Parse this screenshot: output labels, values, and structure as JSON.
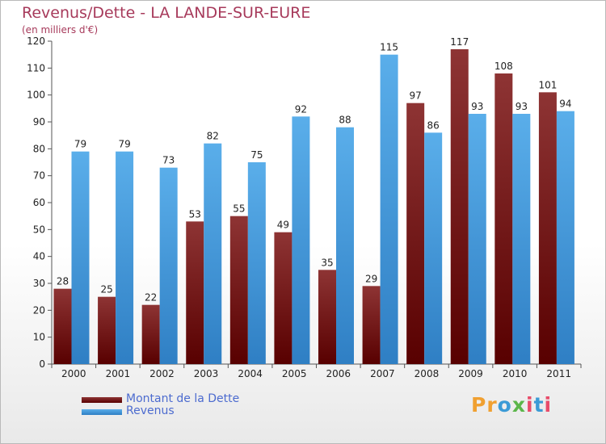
{
  "chart_data": {
    "type": "bar",
    "title": "Revenus/Dette - LA LANDE-SUR-EURE",
    "subtitle": "(en milliers d'€)",
    "categories": [
      "2000",
      "2001",
      "2002",
      "2003",
      "2004",
      "2005",
      "2006",
      "2007",
      "2008",
      "2009",
      "2010",
      "2011"
    ],
    "series": [
      {
        "name": "Montant de la Dette",
        "color": "#7a1a1a",
        "values": [
          28,
          25,
          22,
          53,
          55,
          49,
          35,
          29,
          97,
          117,
          108,
          101
        ]
      },
      {
        "name": "Revenus",
        "color": "#4aa0e0",
        "values": [
          79,
          79,
          73,
          82,
          75,
          92,
          88,
          115,
          86,
          93,
          93,
          94
        ]
      }
    ],
    "ylim": [
      0,
      120
    ],
    "yticks": [
      0,
      10,
      20,
      30,
      40,
      50,
      60,
      70,
      80,
      90,
      100,
      110,
      120
    ],
    "grid": false,
    "legend_position": "bottom-left"
  },
  "brand": {
    "logo_text": "Proxiti"
  }
}
